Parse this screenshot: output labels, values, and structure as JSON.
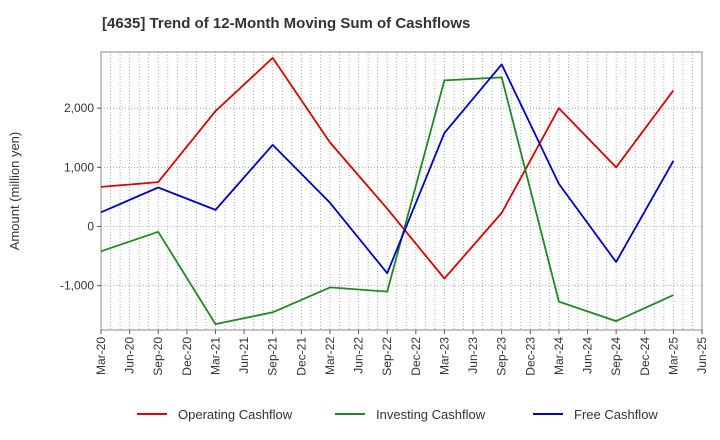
{
  "chart_data": {
    "type": "line",
    "title": "[4635]  Trend of 12-Month Moving Sum of Cashflows",
    "ylabel": "Amount (million yen)",
    "xlabel": "",
    "x_ticks": [
      "Mar-20",
      "Jun-20",
      "Sep-20",
      "Dec-20",
      "Mar-21",
      "Jun-21",
      "Sep-21",
      "Dec-21",
      "Mar-22",
      "Jun-22",
      "Sep-22",
      "Dec-22",
      "Mar-23",
      "Jun-23",
      "Sep-23",
      "Dec-23",
      "Mar-24",
      "Jun-24",
      "Sep-24",
      "Dec-24",
      "Mar-25",
      "Jun-25"
    ],
    "y_ticks": [
      -1000,
      0,
      1000,
      2000
    ],
    "y_tick_labels": [
      "-1,000",
      "0",
      "1,000",
      "2,000"
    ],
    "ylim": [
      -1750,
      2950
    ],
    "grid": true,
    "legend_position": "bottom",
    "series": [
      {
        "name": "Operating Cashflow",
        "color": "#dd0000",
        "points": [
          [
            "Mar-20",
            670
          ],
          [
            "Sep-20",
            750
          ],
          [
            "Mar-21",
            1950
          ],
          [
            "Sep-21",
            2850
          ],
          [
            "Mar-22",
            1420
          ],
          [
            "Sep-22",
            300
          ],
          [
            "Mar-23",
            -880
          ],
          [
            "Sep-23",
            230
          ],
          [
            "Mar-24",
            2000
          ],
          [
            "Sep-24",
            1000
          ],
          [
            "Mar-25",
            2300
          ]
        ]
      },
      {
        "name": "Investing Cashflow",
        "color": "#228822",
        "points": [
          [
            "Mar-20",
            -420
          ],
          [
            "Sep-20",
            -90
          ],
          [
            "Mar-21",
            -1650
          ],
          [
            "Sep-21",
            -1450
          ],
          [
            "Mar-22",
            -1030
          ],
          [
            "Sep-22",
            -1100
          ],
          [
            "Mar-23",
            2470
          ],
          [
            "Sep-23",
            2520
          ],
          [
            "Mar-24",
            -1270
          ],
          [
            "Sep-24",
            -1600
          ],
          [
            "Mar-25",
            -1160
          ]
        ]
      },
      {
        "name": "Free Cashflow",
        "color": "#0000cc",
        "points": [
          [
            "Mar-20",
            240
          ],
          [
            "Sep-20",
            660
          ],
          [
            "Mar-21",
            280
          ],
          [
            "Sep-21",
            1380
          ],
          [
            "Mar-22",
            400
          ],
          [
            "Sep-22",
            -790
          ],
          [
            "Mar-23",
            1580
          ],
          [
            "Sep-23",
            2740
          ],
          [
            "Mar-24",
            720
          ],
          [
            "Sep-24",
            -600
          ],
          [
            "Mar-25",
            1110
          ]
        ]
      }
    ]
  }
}
